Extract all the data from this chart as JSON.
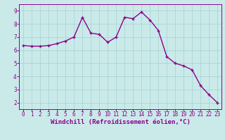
{
  "x": [
    0,
    1,
    2,
    3,
    4,
    5,
    6,
    7,
    8,
    9,
    10,
    11,
    12,
    13,
    14,
    15,
    16,
    17,
    18,
    19,
    20,
    21,
    22,
    23
  ],
  "y": [
    6.35,
    6.3,
    6.3,
    6.35,
    6.5,
    6.7,
    7.0,
    8.5,
    7.3,
    7.2,
    6.6,
    7.0,
    8.5,
    8.4,
    8.9,
    8.3,
    7.5,
    5.5,
    5.0,
    4.8,
    4.5,
    3.3,
    2.6,
    2.0
  ],
  "line_color": "#8B008B",
  "marker": "+",
  "marker_size": 3.5,
  "bg_color": "#caeaea",
  "grid_color": "#aad4d4",
  "xlabel": "Windchill (Refroidissement éolien,°C)",
  "xlim": [
    -0.5,
    23.5
  ],
  "ylim": [
    1.5,
    9.5
  ],
  "yticks": [
    2,
    3,
    4,
    5,
    6,
    7,
    8,
    9
  ],
  "xticks": [
    0,
    1,
    2,
    3,
    4,
    5,
    6,
    7,
    8,
    9,
    10,
    11,
    12,
    13,
    14,
    15,
    16,
    17,
    18,
    19,
    20,
    21,
    22,
    23
  ],
  "xlabel_fontsize": 6.5,
  "tick_fontsize": 5.5,
  "line_width": 1.0
}
